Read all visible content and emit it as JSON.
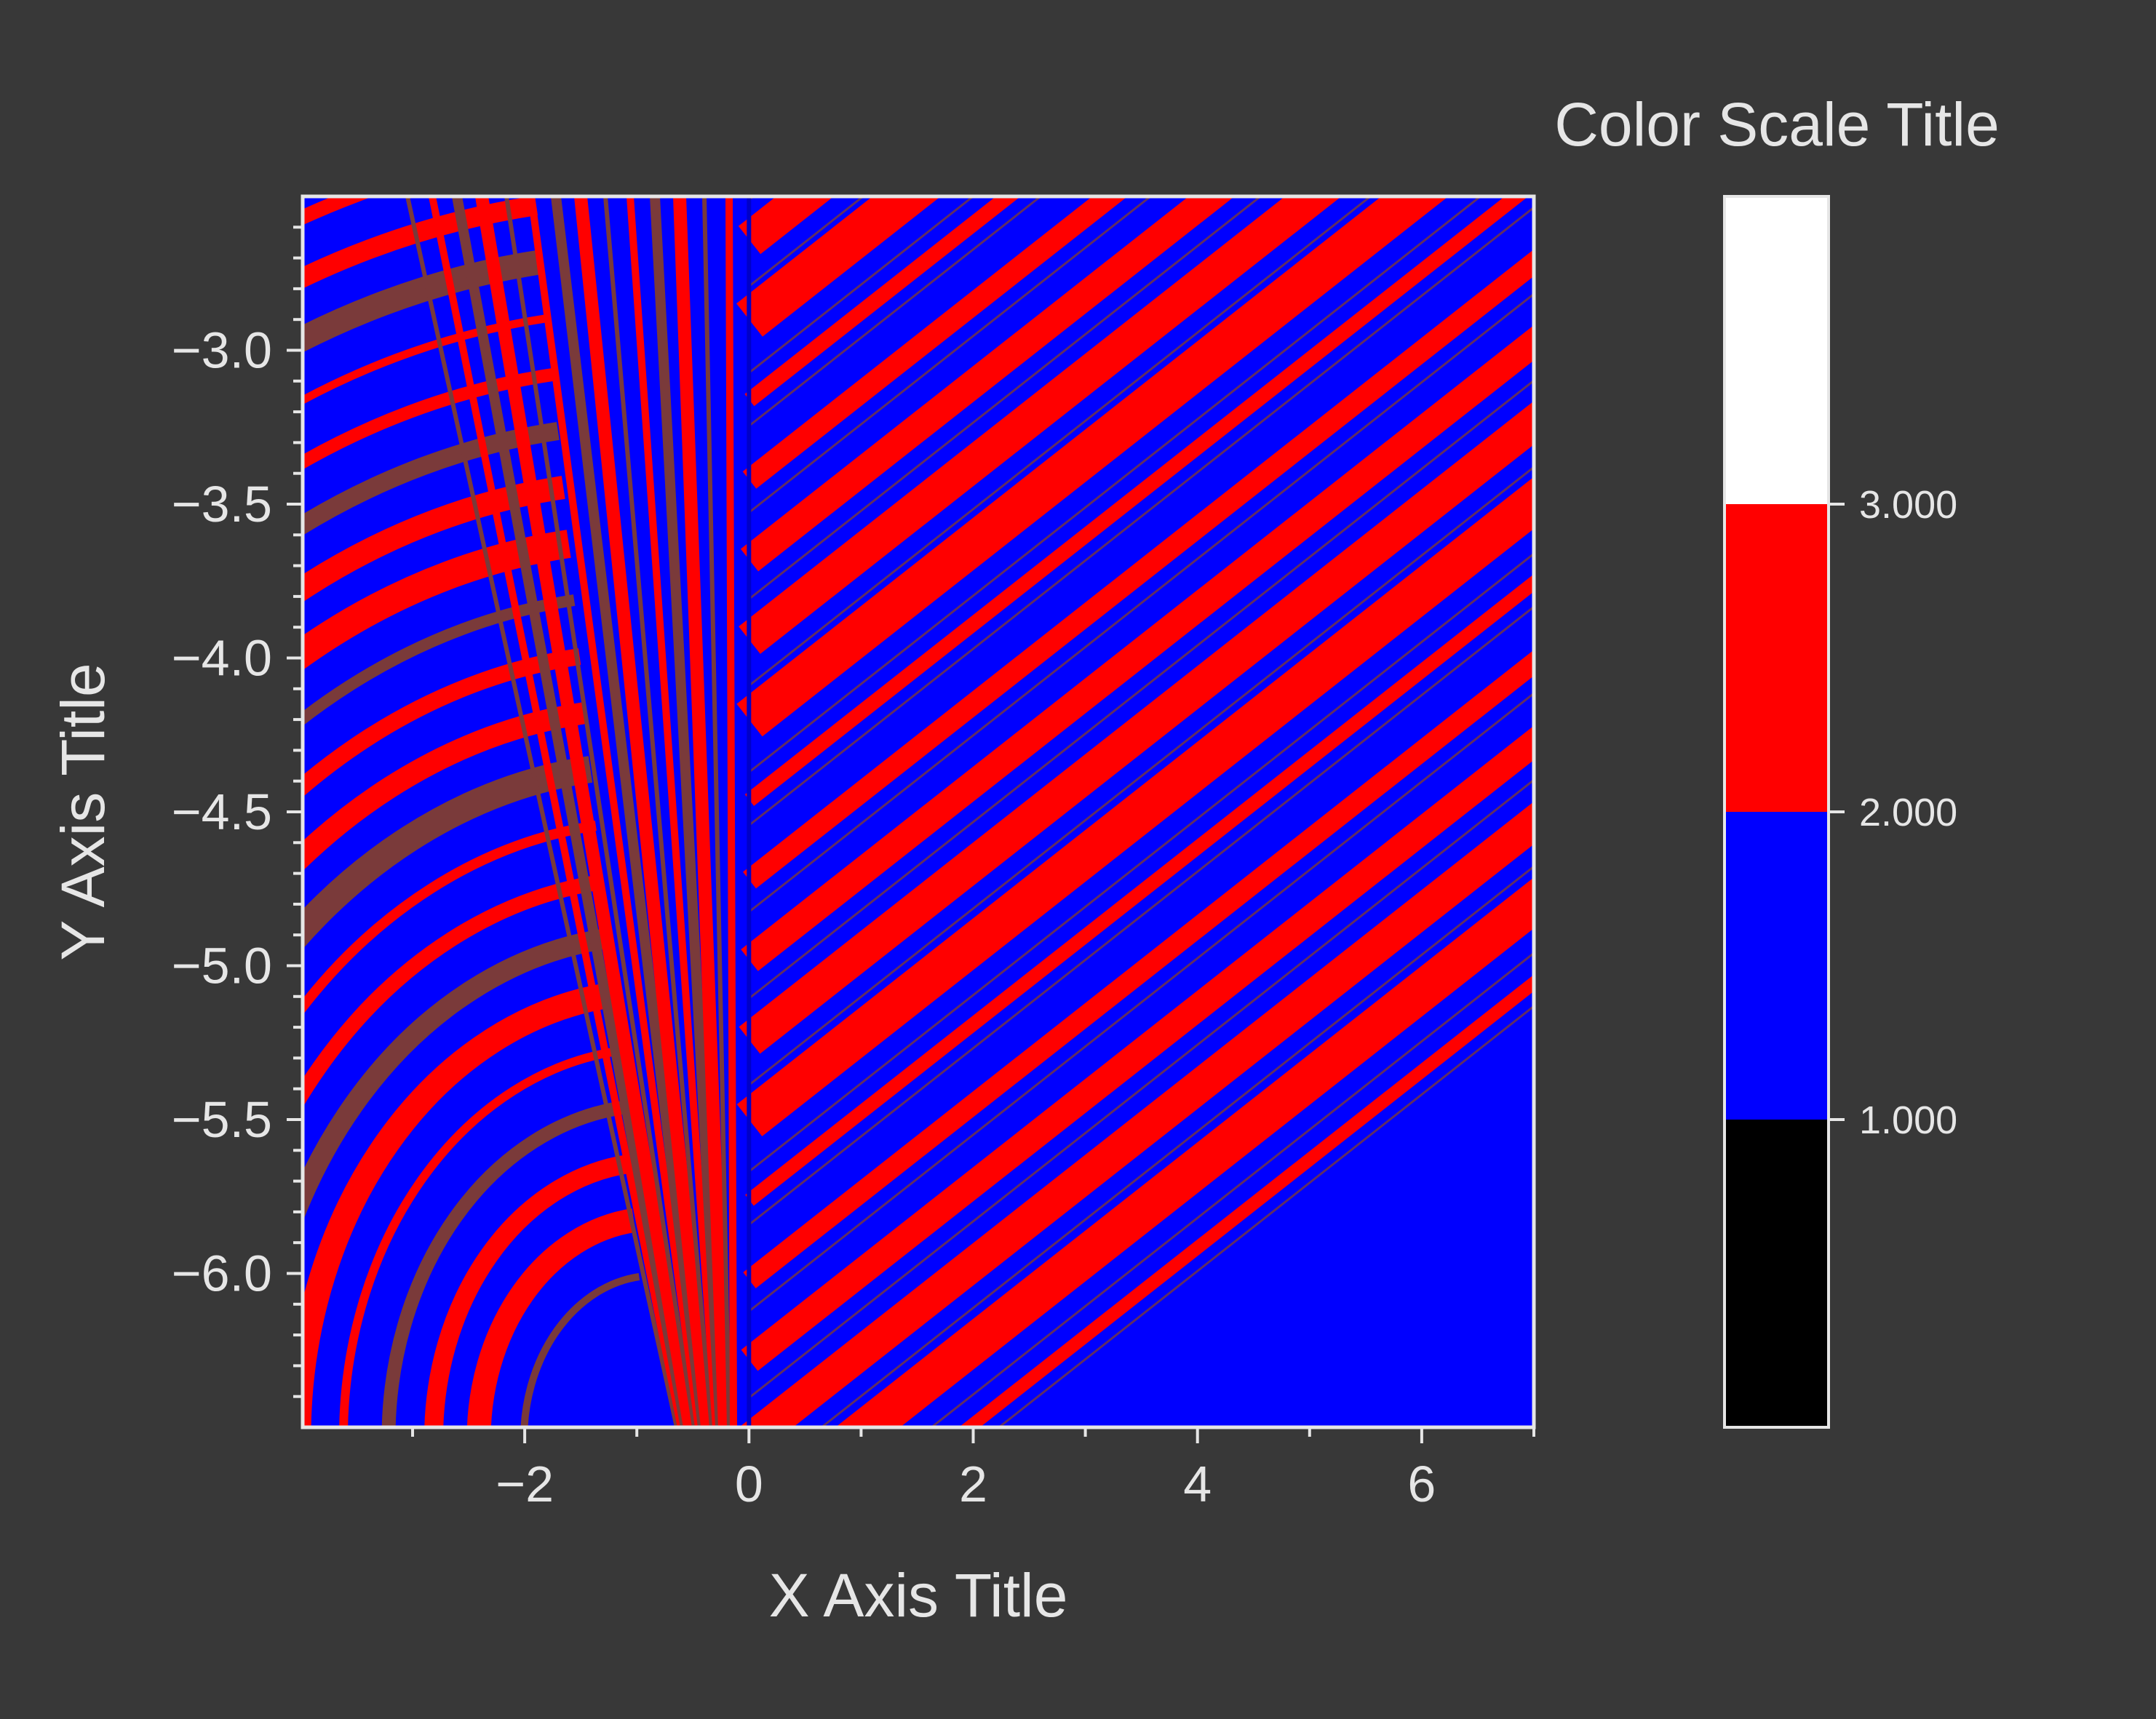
{
  "chart_data": {
    "type": "heatmap",
    "title": "",
    "xlabel": "X Axis Title",
    "ylabel": "Y Axis Title",
    "xlim": [
      -3.98,
      7.0
    ],
    "ylim": [
      -6.5,
      -2.5
    ],
    "x_ticks": [
      -2,
      0,
      2,
      4,
      6
    ],
    "x_tick_labels": [
      "−2",
      "0",
      "2",
      "4",
      "6"
    ],
    "y_ticks": [
      -3.0,
      -3.5,
      -4.0,
      -4.5,
      -5.0,
      -5.5,
      -6.0
    ],
    "y_tick_labels": [
      "−3.0",
      "−3.5",
      "−4.0",
      "−4.5",
      "−5.0",
      "−5.5",
      "−6.0"
    ],
    "color_scale": {
      "title": "Color Scale Title",
      "levels": [
        {
          "from": 0,
          "to": 1,
          "color": "#000000"
        },
        {
          "from": 1,
          "to": 2,
          "color": "#0000ff"
        },
        {
          "from": 2,
          "to": 3,
          "color": "#ff0000"
        },
        {
          "from": 3,
          "to": 4,
          "color": "#ffffff"
        }
      ],
      "tick_values": [
        1,
        2,
        3
      ],
      "tick_labels": [
        "1.000",
        "2.000",
        "3.000"
      ]
    },
    "colors": {
      "background": "#383838",
      "frame": "#e6e6e6",
      "blue": "#0000ff",
      "red": "#ff0000",
      "stripe_edge": "#7a3a3a"
    },
    "legend": "right"
  }
}
